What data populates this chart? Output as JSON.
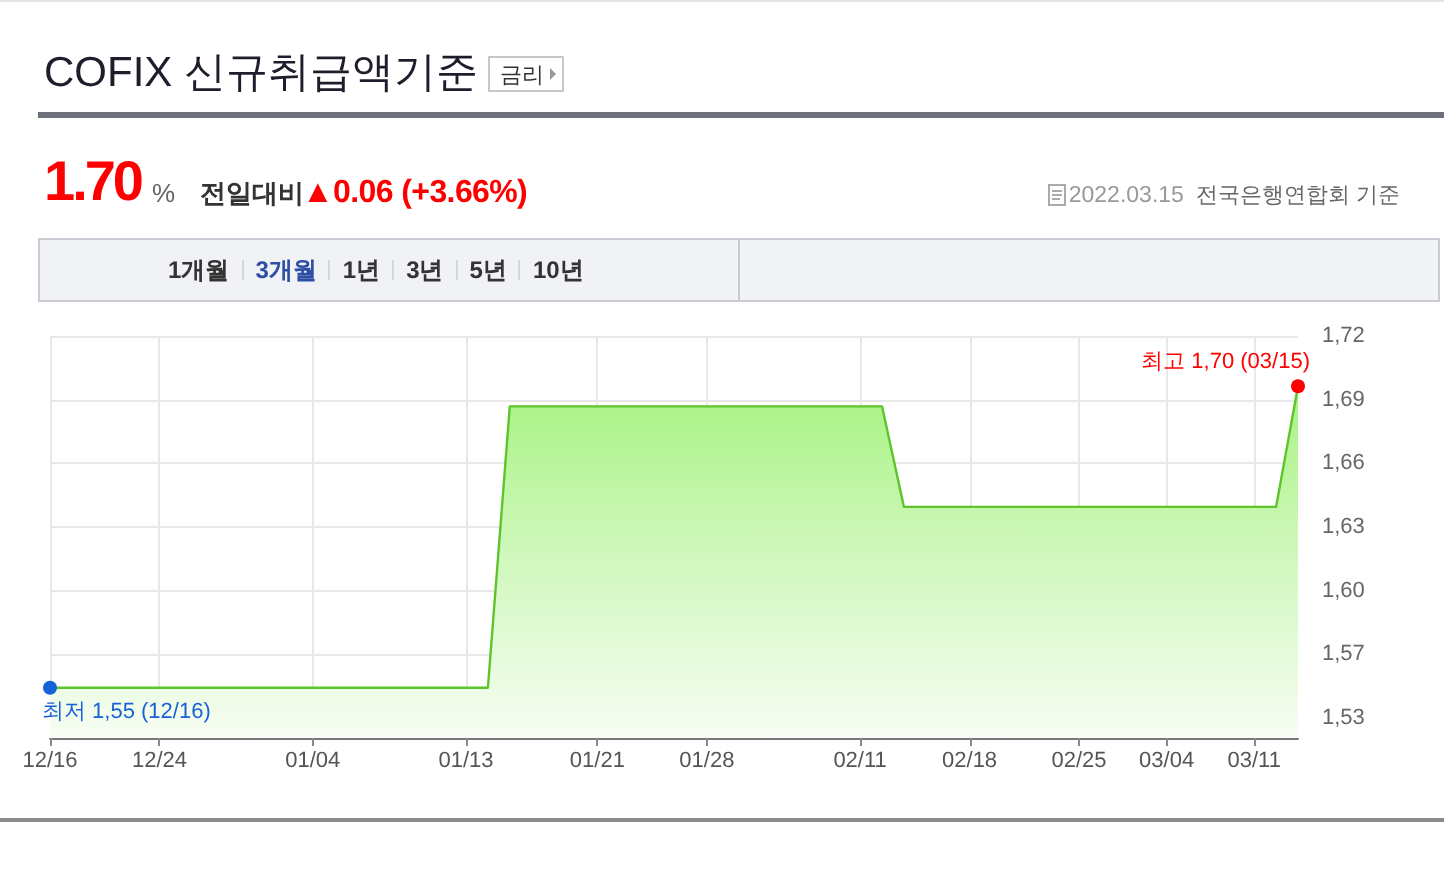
{
  "chart_data": {
    "type": "area",
    "title": "COFIX 신규취급액기준",
    "categories": [
      "12/16",
      null,
      null,
      null,
      null,
      "12/24",
      null,
      null,
      null,
      null,
      null,
      null,
      "01/04",
      null,
      null,
      null,
      null,
      null,
      null,
      "01/13",
      null,
      null,
      null,
      null,
      null,
      "01/21",
      null,
      null,
      null,
      null,
      "01/28",
      null,
      null,
      null,
      null,
      null,
      null,
      "02/11",
      null,
      null,
      null,
      null,
      "02/18",
      null,
      null,
      null,
      null,
      "02/25",
      null,
      null,
      null,
      "03/04",
      null,
      null,
      null,
      "03/11",
      null,
      null
    ],
    "values": [
      1.55,
      1.55,
      1.55,
      1.55,
      1.55,
      1.55,
      1.55,
      1.55,
      1.55,
      1.55,
      1.55,
      1.55,
      1.55,
      1.55,
      1.55,
      1.55,
      1.55,
      1.55,
      1.55,
      1.55,
      1.55,
      1.69,
      1.69,
      1.69,
      1.69,
      1.69,
      1.69,
      1.69,
      1.69,
      1.69,
      1.69,
      1.69,
      1.69,
      1.69,
      1.69,
      1.69,
      1.69,
      1.69,
      1.69,
      1.64,
      1.64,
      1.64,
      1.64,
      1.64,
      1.64,
      1.64,
      1.64,
      1.64,
      1.64,
      1.64,
      1.64,
      1.64,
      1.64,
      1.64,
      1.64,
      1.64,
      1.64,
      1.7
    ],
    "color": "#5ec42c",
    "ylim": [
      1.525,
      1.725
    ],
    "yticks": [
      {
        "value": 1.535,
        "label": "1,53"
      },
      {
        "value": 1.567,
        "label": "1,57"
      },
      {
        "value": 1.598,
        "label": "1,60"
      },
      {
        "value": 1.63,
        "label": "1,63"
      },
      {
        "value": 1.662,
        "label": "1,66"
      },
      {
        "value": 1.693,
        "label": "1,69"
      },
      {
        "value": 1.725,
        "label": "1,72"
      }
    ],
    "grid": true,
    "marker": "none",
    "line_style": "solid",
    "annotations": [
      "금리",
      "1.70",
      "%",
      "전일대비",
      "▲0.06 (+3.66%)",
      "2022.03.15",
      "전국은행연합회 기준",
      "1개월",
      "3개월",
      "1년",
      "3년",
      "5년",
      "10년",
      "최고 1,70 (03/15)",
      {
        "text": "최저 1,55 (12/16)",
        "x": "12/16",
        "y": 1.55
      }
    ]
  }
}
